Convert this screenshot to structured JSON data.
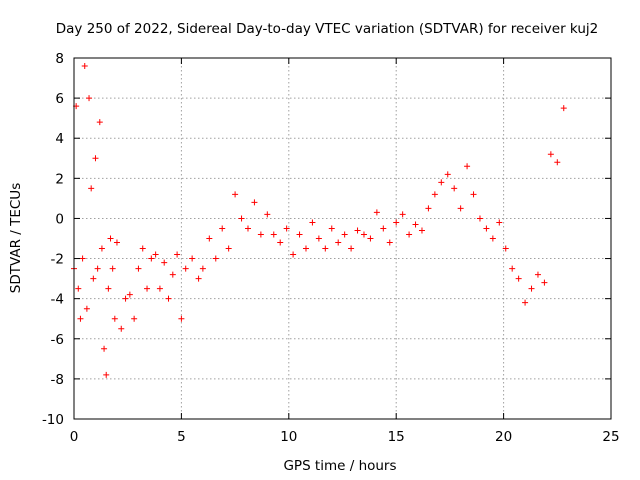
{
  "chart_data": {
    "type": "scatter",
    "title": "Day 250 of 2022, Sidereal Day-to-day VTEC variation (SDTVAR) for receiver kuj2",
    "xlabel": "GPS time / hours",
    "ylabel": "SDTVAR / TECUs",
    "xlim": [
      0,
      25
    ],
    "ylim": [
      -10,
      8
    ],
    "xticks": [
      0,
      5,
      10,
      15,
      20,
      25
    ],
    "yticks": [
      -10,
      -8,
      -6,
      -4,
      -2,
      0,
      2,
      4,
      6,
      8
    ],
    "xtick_labels": [
      "0",
      "5",
      "10",
      "15",
      "20",
      "25"
    ],
    "ytick_labels": [
      "-10",
      "-8",
      "-6",
      "-4",
      "-2",
      "0",
      "2",
      "4",
      "6",
      "8"
    ],
    "grid": true,
    "marker": "+",
    "series": [
      {
        "name": "SDTVAR",
        "color": "#ff0000",
        "x": [
          0.0,
          0.1,
          0.2,
          0.3,
          0.4,
          0.5,
          0.6,
          0.7,
          0.8,
          0.9,
          1.0,
          1.1,
          1.2,
          1.3,
          1.4,
          1.5,
          1.6,
          1.7,
          1.8,
          1.9,
          2.0,
          2.2,
          2.4,
          2.6,
          2.8,
          3.0,
          3.2,
          3.4,
          3.6,
          3.8,
          4.0,
          4.2,
          4.4,
          4.6,
          4.8,
          5.0,
          5.2,
          5.5,
          5.8,
          6.0,
          6.3,
          6.6,
          6.9,
          7.2,
          7.5,
          7.8,
          8.1,
          8.4,
          8.7,
          9.0,
          9.3,
          9.6,
          9.9,
          10.2,
          10.5,
          10.8,
          11.1,
          11.4,
          11.7,
          12.0,
          12.3,
          12.6,
          12.9,
          13.2,
          13.5,
          13.8,
          14.1,
          14.4,
          14.7,
          15.0,
          15.3,
          15.6,
          15.9,
          16.2,
          16.5,
          16.8,
          17.1,
          17.4,
          17.7,
          18.0,
          18.3,
          18.6,
          18.9,
          19.2,
          19.5,
          19.8,
          20.1,
          20.4,
          20.7,
          21.0,
          21.3,
          21.6,
          21.9,
          22.2,
          22.5,
          22.8
        ],
        "y": [
          -2.5,
          5.6,
          -3.5,
          -5.0,
          -2.0,
          7.6,
          -4.5,
          6.0,
          1.5,
          -3.0,
          3.0,
          -2.5,
          4.8,
          -1.5,
          -6.5,
          -7.8,
          -3.5,
          -1.0,
          -2.5,
          -5.0,
          -1.2,
          -5.5,
          -4.0,
          -3.8,
          -5.0,
          -2.5,
          -1.5,
          -3.5,
          -2.0,
          -1.8,
          -3.5,
          -2.2,
          -4.0,
          -2.8,
          -1.8,
          -5.0,
          -2.5,
          -2.0,
          -3.0,
          -2.5,
          -1.0,
          -2.0,
          -0.5,
          -1.5,
          1.2,
          0.0,
          -0.5,
          0.8,
          -0.8,
          0.2,
          -0.8,
          -1.2,
          -0.5,
          -1.8,
          -0.8,
          -1.5,
          -0.2,
          -1.0,
          -1.5,
          -0.5,
          -1.2,
          -0.8,
          -1.5,
          -0.6,
          -0.8,
          -1.0,
          0.3,
          -0.5,
          -1.2,
          -0.2,
          0.2,
          -0.8,
          -0.3,
          -0.6,
          0.5,
          1.2,
          1.8,
          2.2,
          1.5,
          0.5,
          2.6,
          1.2,
          0.0,
          -0.5,
          -1.0,
          -0.2,
          -1.5,
          -2.5,
          -3.0,
          -4.2,
          -3.5,
          -2.8,
          -3.2,
          3.2,
          2.8,
          5.5
        ]
      }
    ]
  }
}
